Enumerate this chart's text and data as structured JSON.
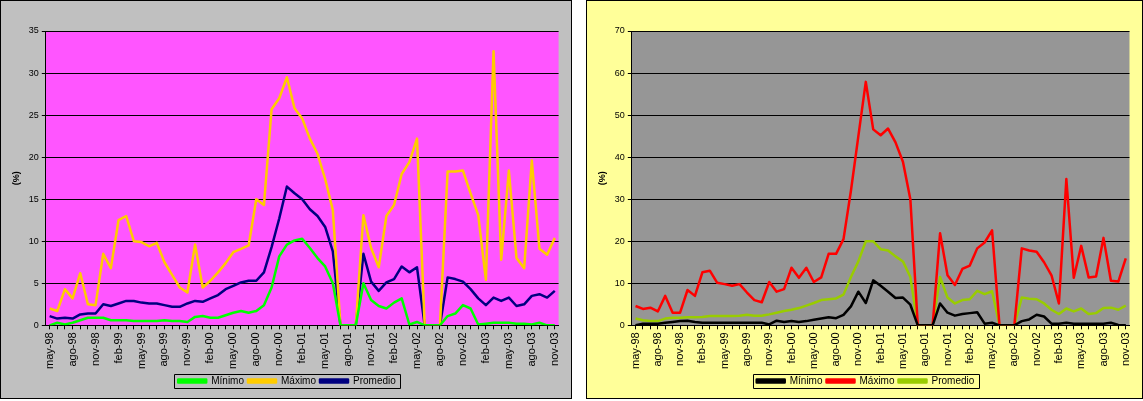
{
  "chart_data": [
    {
      "type": "line",
      "ylabel": "(%)",
      "categories": [
        "may-98",
        null,
        null,
        "ago-98",
        null,
        null,
        "nov-98",
        null,
        null,
        "feb-99",
        null,
        null,
        "may-99",
        null,
        null,
        "ago-99",
        null,
        null,
        "nov-99",
        null,
        null,
        "feb-00",
        null,
        null,
        "may-00",
        null,
        null,
        "ago-00",
        null,
        null,
        "nov-00",
        null,
        null,
        "feb-01",
        null,
        null,
        "may-01",
        null,
        null,
        "ago-01",
        null,
        null,
        "nov-01",
        null,
        null,
        "feb-02",
        null,
        null,
        "may-02",
        null,
        null,
        "ago-02",
        null,
        null,
        "nov-02",
        null,
        null,
        "feb-03",
        null,
        null,
        "may-03",
        null,
        null,
        "ago-03",
        null,
        null,
        "nov-03"
      ],
      "series": [
        {
          "name": "Mínimo",
          "color": "#00ff00",
          "values": [
            0,
            0.3,
            0.1,
            0.3,
            0.6,
            0.9,
            0.9,
            0.9,
            0.6,
            0.6,
            0.6,
            0.5,
            0.5,
            0.5,
            0.5,
            0.6,
            0.5,
            0.5,
            0.4,
            1.0,
            1.1,
            0.9,
            0.9,
            1.2,
            1.5,
            1.7,
            1.5,
            1.7,
            2.4,
            4.5,
            8.2,
            9.6,
            10.1,
            10.3,
            9.2,
            8.0,
            7.0,
            5.0,
            0,
            0,
            0,
            5.0,
            3.0,
            2.3,
            2.0,
            2.7,
            3.2,
            0.1,
            0.4,
            0,
            0,
            0,
            1.1,
            1.4,
            2.4,
            2.0,
            0.1,
            0.2,
            0.3,
            0.3,
            0.3,
            0.2,
            0.2,
            0.1,
            0.3,
            0,
            0
          ]
        },
        {
          "name": "Máximo",
          "color": "#ffcc00",
          "values": [
            2.0,
            1.7,
            4.3,
            3.2,
            6.2,
            2.5,
            2.4,
            8.5,
            6.8,
            12.5,
            13.0,
            10.0,
            9.9,
            9.4,
            9.8,
            7.5,
            6.0,
            4.5,
            3.9,
            9.6,
            4.5,
            5.3,
            6.3,
            7.4,
            8.7,
            9.1,
            9.5,
            15.0,
            14.3,
            25.7,
            27.0,
            29.5,
            25.8,
            24.6,
            22.2,
            20.4,
            17.4,
            13.7,
            0,
            0,
            0,
            13.1,
            9.2,
            6.9,
            13.0,
            14.3,
            18.0,
            19.4,
            22.2,
            0,
            0,
            0,
            18.3,
            18.3,
            18.4,
            15.7,
            13.1,
            5.4,
            32.6,
            7.8,
            18.4,
            8.0,
            6.8,
            19.6,
            9.1,
            8.4,
            10.4
          ]
        },
        {
          "name": "Promedio",
          "color": "#000080",
          "values": [
            1.1,
            0.8,
            0.9,
            0.8,
            1.3,
            1.4,
            1.4,
            2.5,
            2.3,
            2.6,
            2.9,
            2.9,
            2.7,
            2.6,
            2.6,
            2.4,
            2.2,
            2.2,
            2.6,
            2.9,
            2.8,
            3.2,
            3.6,
            4.3,
            4.7,
            5.1,
            5.3,
            5.3,
            6.3,
            9.3,
            12.7,
            16.5,
            15.7,
            15.0,
            13.8,
            13.0,
            11.7,
            8.8,
            0,
            0,
            0,
            8.5,
            5.2,
            4.1,
            5.1,
            5.5,
            7.0,
            6.3,
            6.9,
            0,
            0,
            0,
            5.7,
            5.5,
            5.2,
            4.3,
            3.2,
            2.4,
            3.3,
            2.9,
            3.3,
            2.3,
            2.5,
            3.5,
            3.7,
            3.3,
            4.1
          ]
        }
      ],
      "ylim": [
        0,
        35
      ],
      "yticks": [
        0,
        5,
        10,
        15,
        20,
        25,
        30,
        35
      ],
      "grid": "y",
      "legend": "bottom",
      "marker": "none",
      "line_style": "solid"
    },
    {
      "type": "line",
      "ylabel": "(%)",
      "categories": [
        "may-98",
        null,
        null,
        "ago-98",
        null,
        null,
        "nov-98",
        null,
        null,
        "feb-99",
        null,
        null,
        "may-99",
        null,
        null,
        "ago-99",
        null,
        null,
        "nov-99",
        null,
        null,
        "feb-00",
        null,
        null,
        "may-00",
        null,
        null,
        "ago-00",
        null,
        null,
        "nov-00",
        null,
        null,
        "feb-01",
        null,
        null,
        "may-01",
        null,
        null,
        "ago-01",
        null,
        null,
        "nov-01",
        null,
        null,
        "feb-02",
        null,
        null,
        "may-02",
        null,
        null,
        "ago-02",
        null,
        null,
        "nov-02",
        null,
        null,
        "feb-03",
        null,
        null,
        "may-03",
        null,
        null,
        "ago-03",
        null,
        null,
        "nov-03"
      ],
      "series": [
        {
          "name": "Mínimo",
          "color": "#000000",
          "values": [
            0,
            0.4,
            0.4,
            0.4,
            0.6,
            0.8,
            1.0,
            1.1,
            0.8,
            0.6,
            0.6,
            0.6,
            0.6,
            0.6,
            0.6,
            0.6,
            0.6,
            0.6,
            0.2,
            1.1,
            0.8,
            1.0,
            0.8,
            1.0,
            1.3,
            1.6,
            1.9,
            1.7,
            2.5,
            4.5,
            8.0,
            5.3,
            10.7,
            9.4,
            8.0,
            6.5,
            6.6,
            4.9,
            0,
            0,
            0,
            5.2,
            3.0,
            2.3,
            2.7,
            2.9,
            3.1,
            0.4,
            0.6,
            0,
            0,
            0,
            1.0,
            1.4,
            2.5,
            2.1,
            0.4,
            0.4,
            0.6,
            0.4,
            0.4,
            0.4,
            0.4,
            0.4,
            0.6,
            0.1,
            0
          ]
        },
        {
          "name": "Máximo",
          "color": "#ff0000",
          "values": [
            4.6,
            3.9,
            4.2,
            3.3,
            7.0,
            3.0,
            3.0,
            8.4,
            7.0,
            12.6,
            13.0,
            10.1,
            9.8,
            9.4,
            9.8,
            7.8,
            6.0,
            5.5,
            10.3,
            8.0,
            8.6,
            13.7,
            11.3,
            13.7,
            10.3,
            11.4,
            17.0,
            17.0,
            20.5,
            32,
            45,
            57.9,
            46.6,
            45.2,
            46.8,
            43.5,
            38.9,
            30.0,
            0,
            0,
            0,
            21.9,
            11.9,
            9.6,
            13.4,
            14.2,
            18.3,
            19.7,
            22.6,
            0,
            0,
            0,
            18.3,
            17.8,
            17.5,
            15.0,
            11.9,
            5.2,
            34.8,
            11.3,
            18.9,
            11.4,
            11.6,
            20.8,
            10.6,
            10.4,
            15.9
          ]
        },
        {
          "name": "Promedio",
          "color": "#99cc00",
          "values": [
            1.6,
            1.2,
            1.0,
            1.0,
            1.6,
            1.8,
            1.8,
            1.9,
            1.9,
            2.0,
            2.2,
            2.2,
            2.2,
            2.2,
            2.3,
            2.5,
            2.3,
            2.3,
            2.6,
            3.0,
            3.4,
            3.7,
            4.1,
            4.7,
            5.3,
            6.0,
            6.2,
            6.4,
            7.3,
            11.5,
            15.2,
            20.0,
            20.0,
            18.1,
            17.8,
            16.4,
            15.2,
            11.5,
            0,
            0,
            0,
            11.5,
            6.6,
            5.2,
            6.0,
            6.2,
            8.2,
            7.4,
            8.1,
            0,
            0,
            0,
            6.6,
            6.3,
            6.2,
            5.2,
            3.7,
            2.7,
            4.0,
            3.3,
            4.0,
            2.7,
            2.9,
            4.1,
            4.2,
            3.7,
            4.7
          ]
        }
      ],
      "ylim": [
        0,
        70
      ],
      "yticks": [
        0,
        10,
        20,
        30,
        40,
        50,
        60,
        70
      ],
      "grid": "y",
      "legend": "bottom",
      "marker": "none",
      "line_style": "solid"
    }
  ]
}
